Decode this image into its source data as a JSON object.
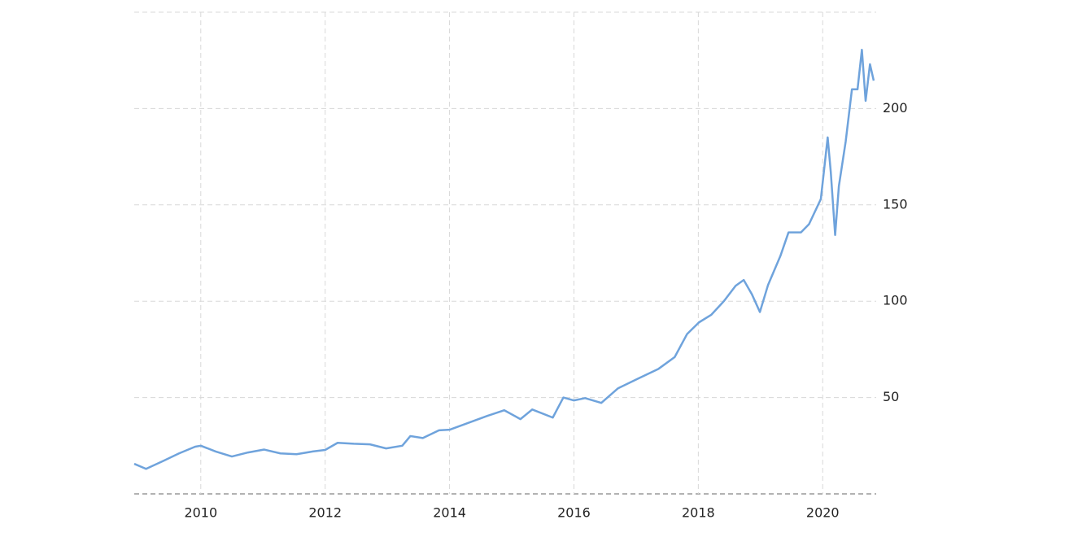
{
  "chart_data": {
    "type": "line",
    "x": [
      2008.93,
      2009.12,
      2009.39,
      2009.65,
      2009.91,
      2010.0,
      2010.24,
      2010.5,
      2010.76,
      2011.02,
      2011.28,
      2011.54,
      2011.8,
      2012.0,
      2012.2,
      2012.46,
      2012.72,
      2012.98,
      2013.24,
      2013.37,
      2013.57,
      2013.83,
      2014.0,
      2014.29,
      2014.61,
      2014.88,
      2015.14,
      2015.33,
      2015.66,
      2015.83,
      2016.0,
      2016.18,
      2016.44,
      2016.71,
      2017.03,
      2017.36,
      2017.62,
      2017.82,
      2018.01,
      2018.21,
      2018.41,
      2018.6,
      2018.73,
      2018.86,
      2018.99,
      2019.12,
      2019.32,
      2019.45,
      2019.65,
      2019.78,
      2019.97,
      2020.08,
      2020.13,
      2020.2,
      2020.26,
      2020.37,
      2020.47,
      2020.56,
      2020.63,
      2020.69,
      2020.76,
      2020.82
    ],
    "series": [
      {
        "color": "#6fa3dc",
        "values": [
          15.6,
          13,
          17,
          21,
          24.5,
          25,
          22,
          19.4,
          21.5,
          23,
          21,
          20.6,
          22,
          22.8,
          26.5,
          26,
          25.7,
          23.6,
          25,
          30,
          29,
          33,
          33.3,
          36.7,
          40.5,
          43.4,
          38.8,
          43.8,
          39.6,
          50,
          48.5,
          49.7,
          47.2,
          54.8,
          59.8,
          64.9,
          71,
          83,
          89,
          93,
          100,
          108,
          111,
          103.7,
          94.4,
          108.3,
          123.5,
          135.7,
          135.7,
          140,
          153,
          185,
          167,
          134.4,
          159.7,
          183,
          210,
          210,
          230.5,
          204,
          223,
          214.5
        ]
      }
    ],
    "xlim": [
      2008.93,
      2020.86
    ],
    "xticks": [
      2010,
      2012,
      2014,
      2016,
      2018,
      2020
    ],
    "ylim": [
      0,
      250
    ],
    "yticks": [
      50,
      100,
      150,
      200
    ],
    "grid": true
  }
}
